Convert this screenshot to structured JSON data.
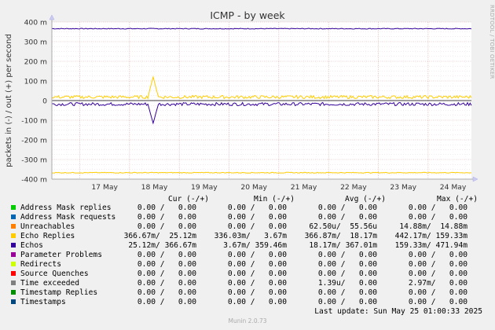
{
  "chart_data": {
    "type": "line",
    "title": "ICMP - by week",
    "ylabel": "packets in (-) / out (+) per second",
    "ylim": [
      -400,
      400
    ],
    "y_ticks": [
      {
        "value": 400,
        "label": "400 m"
      },
      {
        "value": 300,
        "label": "300 m"
      },
      {
        "value": 200,
        "label": "200 m"
      },
      {
        "value": 100,
        "label": "100 m"
      },
      {
        "value": 0,
        "label": "0"
      },
      {
        "value": -100,
        "label": "-100 m"
      },
      {
        "value": -200,
        "label": "-200 m"
      },
      {
        "value": -300,
        "label": "-300 m"
      },
      {
        "value": -400,
        "label": "-400 m"
      }
    ],
    "x_ticks": [
      "17 May",
      "18 May",
      "19 May",
      "20 May",
      "21 May",
      "22 May",
      "23 May",
      "24 May"
    ],
    "grid": true,
    "series": [
      {
        "name": "Echos",
        "color": "#330099",
        "out_level": 366,
        "in_level": -18,
        "spike_in": -115
      },
      {
        "name": "Echo Replies",
        "color": "#ffcc00",
        "out_level": 18,
        "in_level": -367,
        "spike_out": 120
      }
    ]
  },
  "legend": {
    "headers": {
      "cur": "Cur (-/+)",
      "min": "Min (-/+)",
      "avg": "Avg (-/+)",
      "max": "Max (-/+)"
    },
    "rows": [
      {
        "name": "Address Mask replies",
        "color": "#00cc00",
        "cur": "0.00 /   0.00",
        "min": "0.00 /   0.00",
        "avg": "0.00 /   0.00",
        "max": "0.00 /   0.00"
      },
      {
        "name": "Address Mask requests",
        "color": "#0066b3",
        "cur": "0.00 /   0.00",
        "min": "0.00 /   0.00",
        "avg": "0.00 /   0.00",
        "max": "0.00 /   0.00"
      },
      {
        "name": "Unreachables",
        "color": "#ff8000",
        "cur": "0.00 /   0.00",
        "min": "0.00 /   0.00",
        "avg": "62.50u/  55.56u",
        "max": "14.88m/  14.88m"
      },
      {
        "name": "Echo Replies",
        "color": "#ffcc00",
        "cur": "366.67m/  25.12m",
        "min": "336.03m/   3.67m",
        "avg": "366.87m/  18.17m",
        "max": "442.17m/ 159.33m"
      },
      {
        "name": "Echos",
        "color": "#330099",
        "cur": "25.12m/ 366.67m",
        "min": "3.67m/ 359.46m",
        "avg": "18.17m/ 367.01m",
        "max": "159.33m/ 471.94m"
      },
      {
        "name": "Parameter Problems",
        "color": "#990099",
        "cur": "0.00 /   0.00",
        "min": "0.00 /   0.00",
        "avg": "0.00 /   0.00",
        "max": "0.00 /   0.00"
      },
      {
        "name": "Redirects",
        "color": "#ccff00",
        "cur": "0.00 /   0.00",
        "min": "0.00 /   0.00",
        "avg": "0.00 /   0.00",
        "max": "0.00 /   0.00"
      },
      {
        "name": "Source Quenches",
        "color": "#ff0000",
        "cur": "0.00 /   0.00",
        "min": "0.00 /   0.00",
        "avg": "0.00 /   0.00",
        "max": "0.00 /   0.00"
      },
      {
        "name": "Time exceeded",
        "color": "#808080",
        "cur": "0.00 /   0.00",
        "min": "0.00 /   0.00",
        "avg": "1.39u/   0.00",
        "max": "2.97m/   0.00"
      },
      {
        "name": "Timestamp Replies",
        "color": "#008f00",
        "cur": "0.00 /   0.00",
        "min": "0.00 /   0.00",
        "avg": "0.00 /   0.00",
        "max": "0.00 /   0.00"
      },
      {
        "name": "Timestamps",
        "color": "#00487d",
        "cur": "0.00 /   0.00",
        "min": "0.00 /   0.00",
        "avg": "0.00 /   0.00",
        "max": "0.00 /   0.00"
      }
    ]
  },
  "last_update": "Last update: Sun May 25 01:00:33 2025",
  "footer": "Munin 2.0.73",
  "side_text": "RRDTOOL / TOBI OETIKER"
}
